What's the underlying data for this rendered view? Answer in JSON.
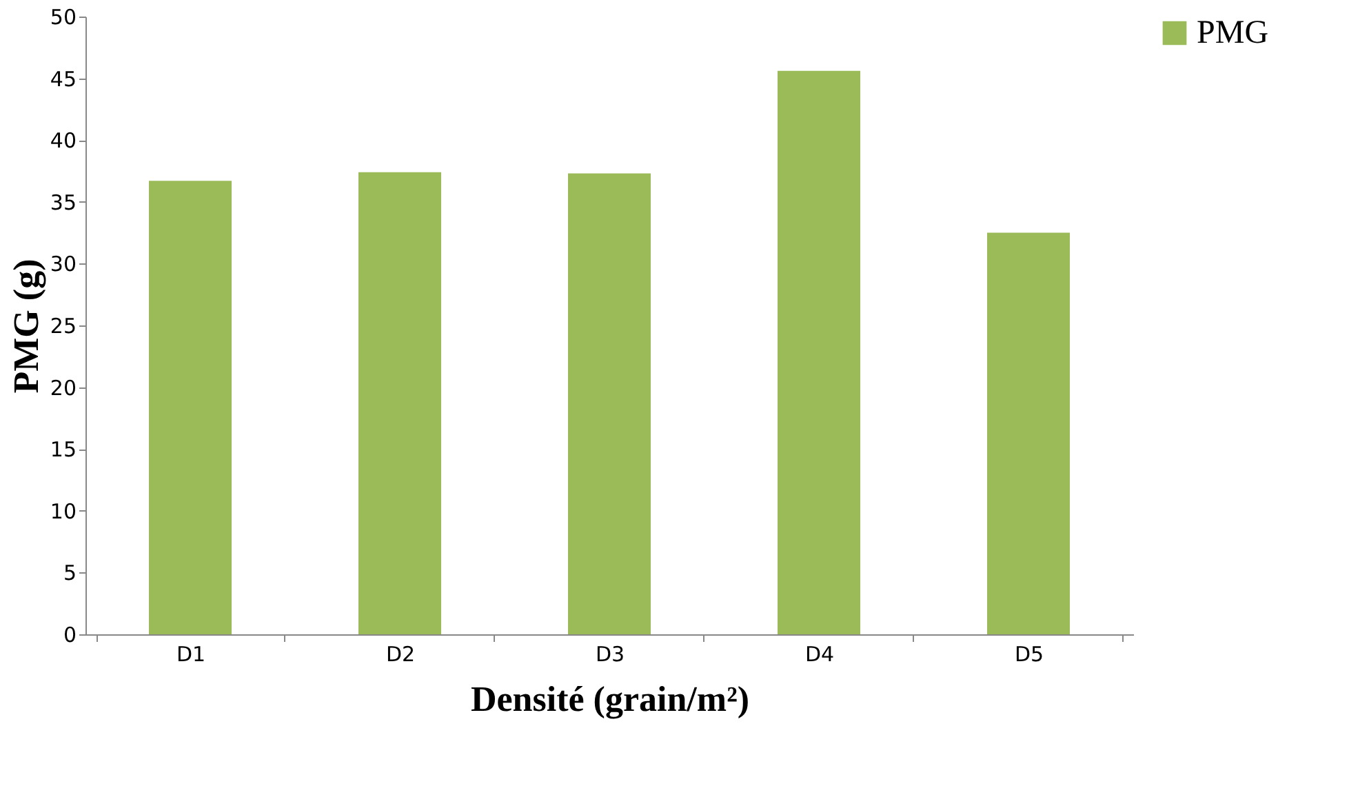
{
  "chart_data": {
    "type": "bar",
    "xlabel": "Densité (grain/m²)",
    "ylabel": "PMG (g)",
    "categories": [
      "D1",
      "D2",
      "D3",
      "D4",
      "D5"
    ],
    "series": [
      {
        "name": "PMG",
        "color": "#9bbb59",
        "values": [
          36.7,
          37.4,
          37.3,
          45.6,
          32.5
        ]
      }
    ],
    "ylim": [
      0,
      50
    ],
    "yticks": [
      0,
      5,
      10,
      15,
      20,
      25,
      30,
      35,
      40,
      45,
      50
    ],
    "grid": false,
    "legend": "right"
  }
}
